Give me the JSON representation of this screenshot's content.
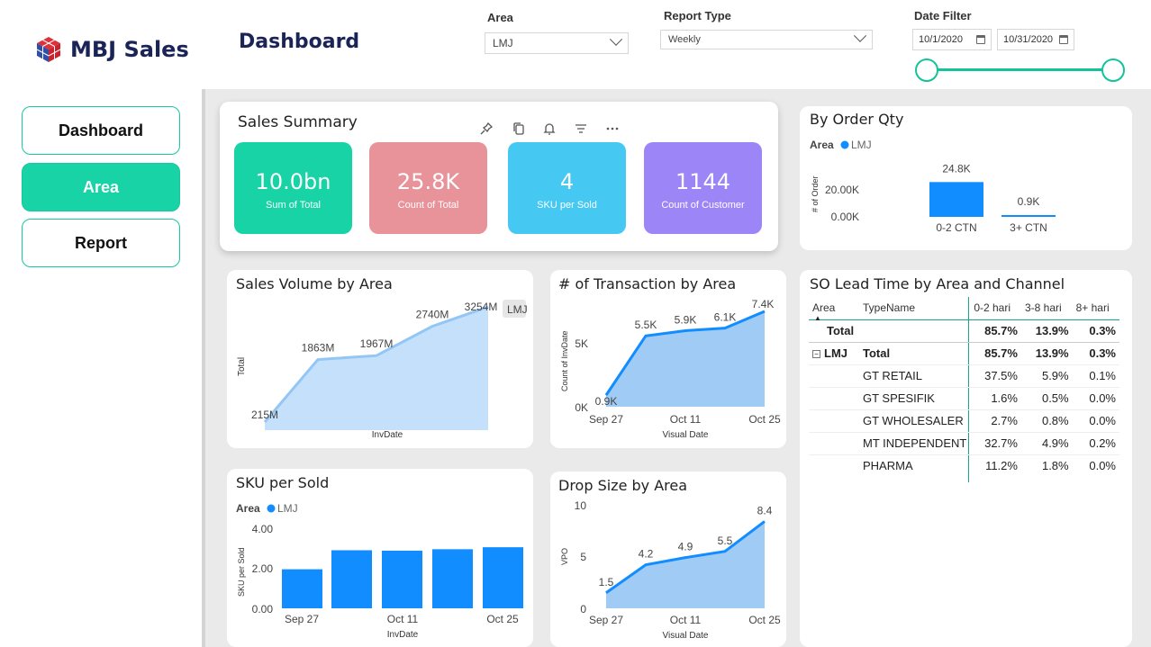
{
  "header": {
    "logo_text": "MBJ Sales",
    "page_title": "Dashboard",
    "area_label": "Area",
    "area_value": "LMJ",
    "report_type_label": "Report Type",
    "report_type_value": "Weekly",
    "date_filter_label": "Date Filter",
    "date_start": "10/1/2020",
    "date_end": "10/31/2020"
  },
  "nav": {
    "items": [
      {
        "label": "Dashboard"
      },
      {
        "label": "Area"
      },
      {
        "label": "Report"
      }
    ]
  },
  "sales_summary": {
    "title": "Sales Summary",
    "kpis": [
      {
        "value": "10.0bn",
        "label": "Sum of Total",
        "color": "#17d3a6"
      },
      {
        "value": "25.8K",
        "label": "Count of Total",
        "color": "#e8929a"
      },
      {
        "value": "4",
        "label": "SKU per Sold",
        "color": "#45c9f3"
      },
      {
        "value": "1144",
        "label": "Count of Customer",
        "color": "#9b85f7"
      }
    ]
  },
  "by_order_qty": {
    "title": "By Order Qty",
    "legend_title": "Area",
    "legend_item": "LMJ",
    "ylabel": "# of Order",
    "yticks": [
      "20.00K",
      "0.00K"
    ],
    "chart_data": {
      "type": "bar",
      "categories": [
        "0-2 CTN",
        "3+ CTN"
      ],
      "values": [
        24.8,
        0.9
      ],
      "labels": [
        "24.8K",
        "0.9K"
      ],
      "ylim": [
        0,
        25
      ]
    }
  },
  "sales_volume": {
    "title": "Sales Volume by Area",
    "xlabel": "InvDate",
    "ylabel": "Total",
    "legend_item": "LMJ",
    "chart_data": {
      "type": "area",
      "values": [
        215,
        1863,
        1967,
        2740,
        3254
      ],
      "labels": [
        "215M",
        "1863M",
        "1967M",
        "2740M",
        "3254M"
      ],
      "ylim": [
        0,
        3254
      ]
    }
  },
  "transactions": {
    "title": "# of Transaction by Area",
    "xlabel": "Visual Date",
    "ylabel": "Count of InvDate",
    "yticks": [
      "5K",
      "0K"
    ],
    "xticks": [
      "Sep 27",
      "Oct 11",
      "Oct 25"
    ],
    "chart_data": {
      "type": "area",
      "values": [
        0.9,
        5.5,
        5.9,
        6.1,
        7.4
      ],
      "labels": [
        "0.9K",
        "5.5K",
        "5.9K",
        "6.1K",
        "7.4K"
      ],
      "ylim": [
        0,
        7.4
      ]
    }
  },
  "sku_per_sold": {
    "title": "SKU per Sold",
    "legend_title": "Area",
    "legend_item": "LMJ",
    "xlabel": "InvDate",
    "ylabel": "SKU per Sold",
    "yticks": [
      "4.00",
      "2.00",
      "0.00"
    ],
    "xticks": [
      "Sep 27",
      "Oct 11",
      "Oct 25"
    ],
    "chart_data": {
      "type": "bar",
      "values": [
        1.95,
        2.9,
        2.88,
        2.95,
        3.05
      ],
      "ylim": [
        0,
        4
      ]
    }
  },
  "drop_size": {
    "title": "Drop Size by Area",
    "xlabel": "Visual Date",
    "ylabel": "VPO",
    "yticks": [
      "10",
      "5",
      "0"
    ],
    "xticks": [
      "Sep 27",
      "Oct 11",
      "Oct 25"
    ],
    "chart_data": {
      "type": "area",
      "values": [
        1.5,
        4.2,
        4.9,
        5.5,
        8.4
      ],
      "labels": [
        "1.5",
        "4.2",
        "4.9",
        "5.5",
        "8.4"
      ],
      "ylim": [
        0,
        10
      ]
    }
  },
  "lead_time": {
    "title": "SO Lead Time by Area and Channel",
    "headers": [
      "Area",
      "TypeName",
      "0-2 hari",
      "3-8 hari",
      "8+ hari"
    ],
    "total_row": {
      "label": "Total",
      "a": "85.7%",
      "b": "13.9%",
      "c": "0.3%"
    },
    "area_row": {
      "area": "LMJ",
      "label": "Total",
      "a": "85.7%",
      "b": "13.9%",
      "c": "0.3%"
    },
    "rows": [
      {
        "name": "GT RETAIL",
        "a": "37.5%",
        "b": "5.9%",
        "c": "0.1%"
      },
      {
        "name": "GT SPESIFIK",
        "a": "1.6%",
        "b": "0.5%",
        "c": "0.0%"
      },
      {
        "name": "GT WHOLESALER",
        "a": "2.7%",
        "b": "0.8%",
        "c": "0.0%"
      },
      {
        "name": "MT INDEPENDENT",
        "a": "32.7%",
        "b": "4.9%",
        "c": "0.2%"
      },
      {
        "name": "PHARMA",
        "a": "11.2%",
        "b": "1.8%",
        "c": "0.0%"
      }
    ]
  }
}
